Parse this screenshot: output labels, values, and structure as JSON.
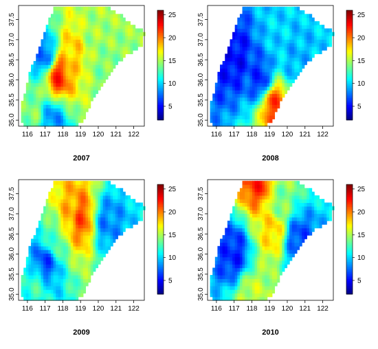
{
  "figure": {
    "colorbar_ticks": [
      5,
      10,
      15,
      20,
      25
    ],
    "colorbar_range": [
      2,
      26
    ],
    "colorbar_colors": [
      "#00007f",
      "#0000ff",
      "#007fff",
      "#00ffff",
      "#7fff7f",
      "#ffff00",
      "#ff7f00",
      "#ff0000",
      "#7f0000"
    ],
    "x_ticks": [
      "116",
      "117",
      "118",
      "119",
      "120",
      "121",
      "122"
    ],
    "y_ticks": [
      "35.0",
      "35.5",
      "36.0",
      "36.5",
      "37.0",
      "37.5"
    ],
    "panels": [
      {
        "title": "2007"
      },
      {
        "title": "2008"
      },
      {
        "title": "2009"
      },
      {
        "title": "2010"
      }
    ]
  },
  "chart_data": [
    {
      "type": "heatmap",
      "title": "2007",
      "x_range": [
        115.5,
        122.6
      ],
      "y_range": [
        34.85,
        37.85
      ],
      "colorbar": {
        "ticks": [
          5,
          10,
          15,
          20,
          25
        ],
        "range": [
          2,
          26
        ]
      },
      "hotspots": [
        {
          "lon": 117.7,
          "lat": 36.1,
          "value": 24
        },
        {
          "lon": 118.6,
          "lat": 36.7,
          "value": 19
        },
        {
          "lon": 119.7,
          "lat": 37.1,
          "value": 15
        },
        {
          "lon": 116.3,
          "lat": 35.2,
          "value": 14
        },
        {
          "lon": 120.3,
          "lat": 36.3,
          "value": 14
        },
        {
          "lon": 117.0,
          "lat": 36.6,
          "value": 6
        },
        {
          "lon": 117.4,
          "lat": 35.0,
          "value": 7
        }
      ]
    },
    {
      "type": "heatmap",
      "title": "2008",
      "x_range": [
        115.5,
        122.6
      ],
      "y_range": [
        34.85,
        37.85
      ],
      "colorbar": {
        "ticks": [
          5,
          10,
          15,
          20,
          25
        ],
        "range": [
          2,
          26
        ]
      },
      "hotspots": [
        {
          "lon": 119.2,
          "lat": 35.4,
          "value": 24
        },
        {
          "lon": 117.0,
          "lat": 36.6,
          "value": 4
        },
        {
          "lon": 118.5,
          "lat": 36.0,
          "value": 5
        },
        {
          "lon": 119.5,
          "lat": 37.4,
          "value": 10
        },
        {
          "lon": 120.5,
          "lat": 36.5,
          "value": 9
        }
      ]
    },
    {
      "type": "heatmap",
      "title": "2009",
      "x_range": [
        115.5,
        122.6
      ],
      "y_range": [
        34.85,
        37.85
      ],
      "colorbar": {
        "ticks": [
          5,
          10,
          15,
          20,
          25
        ],
        "range": [
          2,
          26
        ]
      },
      "hotspots": [
        {
          "lon": 119.0,
          "lat": 36.9,
          "value": 23
        },
        {
          "lon": 118.4,
          "lat": 37.0,
          "value": 20
        },
        {
          "lon": 117.5,
          "lat": 36.4,
          "value": 13
        },
        {
          "lon": 116.5,
          "lat": 35.2,
          "value": 12
        },
        {
          "lon": 117.0,
          "lat": 35.8,
          "value": 5
        },
        {
          "lon": 120.5,
          "lat": 36.8,
          "value": 7
        }
      ]
    },
    {
      "type": "heatmap",
      "title": "2010",
      "x_range": [
        115.5,
        122.6
      ],
      "y_range": [
        34.85,
        37.85
      ],
      "colorbar": {
        "ticks": [
          5,
          10,
          15,
          20,
          25
        ],
        "range": [
          2,
          26
        ]
      },
      "hotspots": [
        {
          "lon": 119.2,
          "lat": 36.6,
          "value": 19
        },
        {
          "lon": 118.0,
          "lat": 35.0,
          "value": 16
        },
        {
          "lon": 119.6,
          "lat": 37.3,
          "value": 14
        },
        {
          "lon": 117.0,
          "lat": 36.0,
          "value": 4
        },
        {
          "lon": 120.6,
          "lat": 36.4,
          "value": 5
        },
        {
          "lon": 118.4,
          "lat": 37.8,
          "value": 24
        }
      ]
    }
  ]
}
